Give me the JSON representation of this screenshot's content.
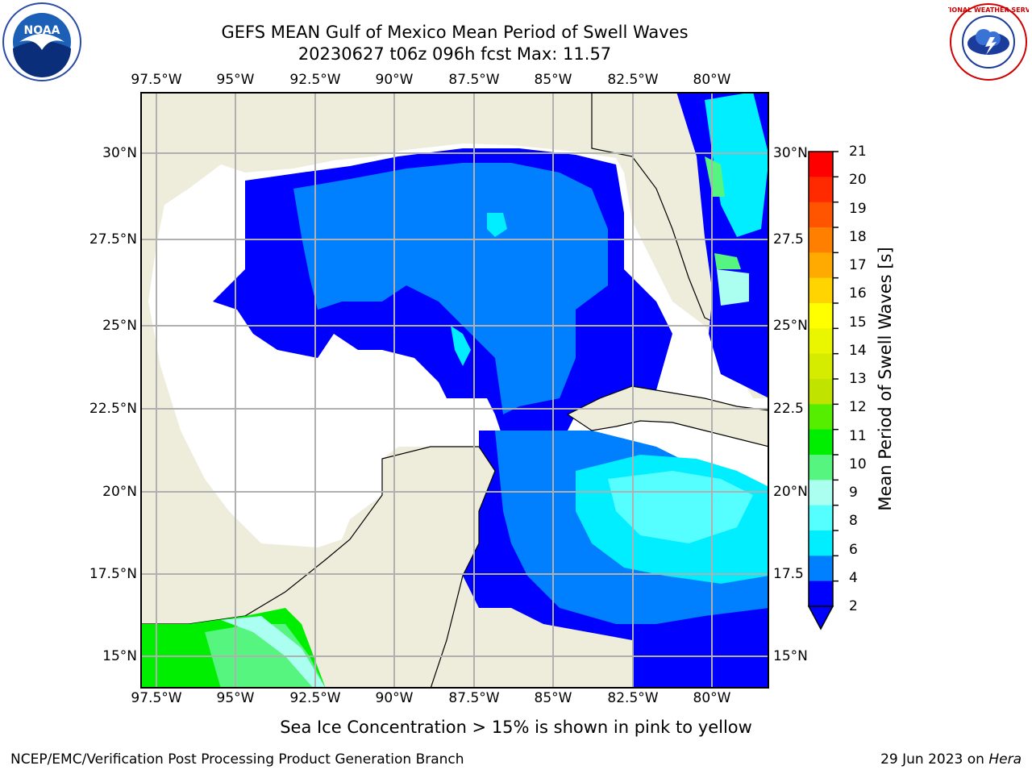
{
  "title_line1": "GEFS MEAN Gulf of Mexico Mean Period of Swell Waves",
  "title_line2": "20230627 t06z 096h fcst   Max: 11.57",
  "lon_labels": [
    "97.5°W",
    "95°W",
    "92.5°W",
    "90°W",
    "87.5°W",
    "85°W",
    "82.5°W",
    "80°W"
  ],
  "lat_labels_left": [
    "30°N",
    "27.5°N",
    "25°N",
    "22.5°N",
    "20°N",
    "17.5°N",
    "15°N"
  ],
  "lat_labels_right": [
    "30°N",
    "27.5",
    "25°N",
    "22.5",
    "20°N",
    "17.5",
    "15°N"
  ],
  "colorbar": {
    "title": "Mean Period of Swell Waves [s]",
    "ticks": [
      "21",
      "20",
      "19",
      "18",
      "17",
      "16",
      "15",
      "14",
      "13",
      "12",
      "11",
      "10",
      "9",
      "8",
      "6",
      "4",
      "2"
    ],
    "colors": [
      "#ff0000",
      "#ff2a00",
      "#ff5500",
      "#ff8000",
      "#ffaa00",
      "#ffd400",
      "#ffff00",
      "#eaf500",
      "#d5ec00",
      "#c0e300",
      "#55ee00",
      "#00ee00",
      "#55f580",
      "#aafff0",
      "#55ffff",
      "#00eeff",
      "#0080ff",
      "#0000ff"
    ]
  },
  "note": "Sea Ice Concentration > 15% is shown in pink to yellow",
  "footer_left": "NCEP/EMC/Verification Post Processing Product Generation Branch",
  "footer_right_date": "29 Jun 2023 on ",
  "footer_right_host": "Hera",
  "logos": {
    "noaa_text": "NOAA",
    "nws_text": "NATIONAL WEATHER SERVICE"
  },
  "map_colors": {
    "land": "#eeeddc",
    "ocean_low": "#0000ff",
    "ocean_mid": "#0080ff",
    "ocean_hi": "#00eeff",
    "ocean_hi2": "#55ffff",
    "green": "#00ee00",
    "light_green": "#55f580"
  }
}
